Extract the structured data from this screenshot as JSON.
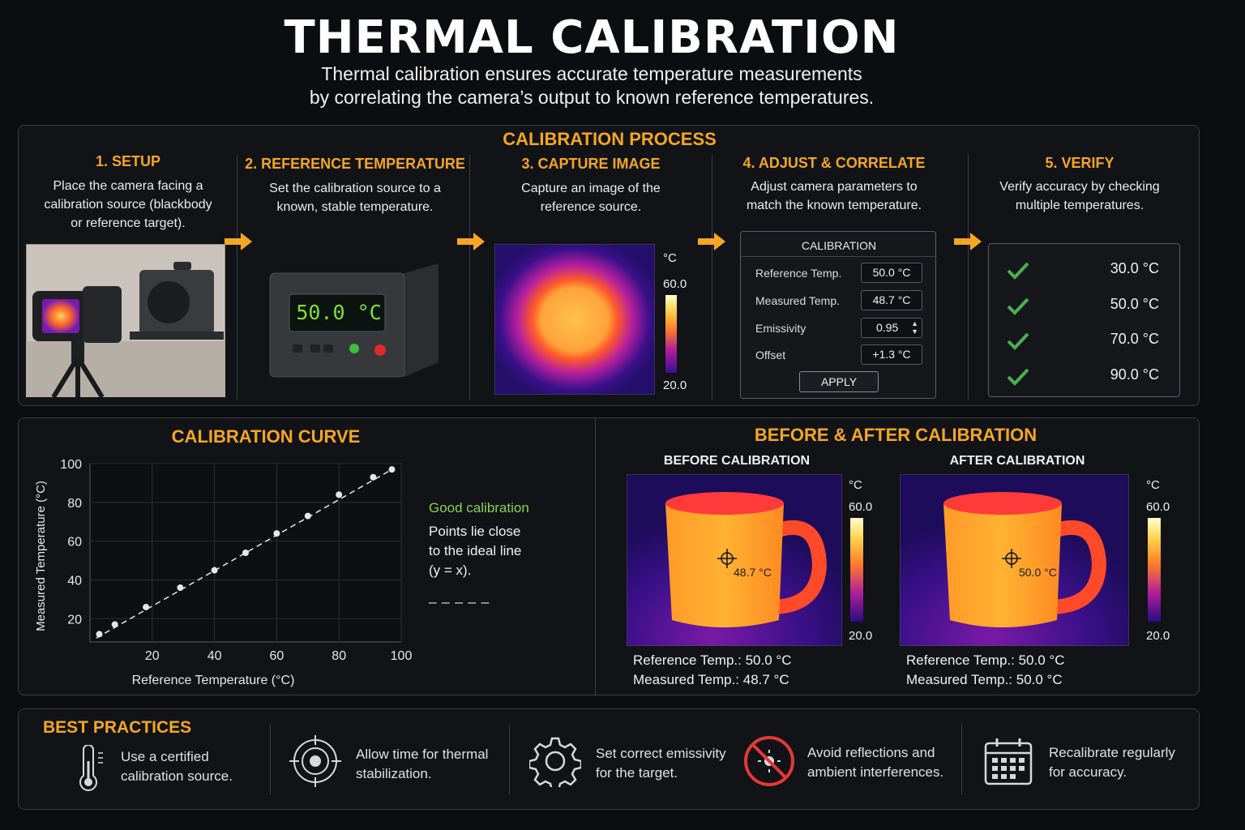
{
  "title": "THERMAL CALIBRATION",
  "subtitle_line1": "Thermal calibration ensures accurate temperature measurements",
  "subtitle_line2": "by correlating the camera’s output to known reference temperatures.",
  "process": {
    "title": "CALIBRATION PROCESS",
    "steps": [
      {
        "title": "1. SETUP",
        "desc": [
          "Place the camera facing a",
          "calibration source (blackbody",
          "or reference target)."
        ]
      },
      {
        "title": "2. REFERENCE TEMPERATURE",
        "desc": [
          "Set the calibration source to a",
          "known, stable temperature."
        ]
      },
      {
        "title": "3. CAPTURE IMAGE",
        "desc": [
          "Capture an image of the",
          "reference source."
        ]
      },
      {
        "title": "4. ADJUST & CORRELATE",
        "desc": [
          "Adjust camera parameters to",
          "match the known temperature."
        ]
      },
      {
        "title": "5. VERIFY",
        "desc": [
          "Verify accuracy by checking",
          "multiple temperatures."
        ]
      }
    ],
    "source_display": "50.0 °C",
    "capture_scale": {
      "unit": "°C",
      "max": "60.0",
      "min": "20.0"
    },
    "calibration_panel": {
      "header": "CALIBRATION",
      "rows": [
        {
          "label": "Reference Temp.",
          "value": "50.0 °C"
        },
        {
          "label": "Measured Temp.",
          "value": "48.7 °C"
        },
        {
          "label": "Emissivity",
          "value": "0.95"
        },
        {
          "label": "Offset",
          "value": "+1.3 °C"
        }
      ],
      "apply_label": "APPLY"
    },
    "verify_values": [
      "30.0 °C",
      "50.0 °C",
      "70.0 °C",
      "90.0 °C"
    ]
  },
  "curve": {
    "title": "CALIBRATION CURVE",
    "note_title": "Good calibration",
    "note_lines": [
      "Points lie close",
      "to the ideal line",
      "(y = x)."
    ],
    "note_dash": "_ _ _ _ _"
  },
  "chart_data": {
    "type": "scatter",
    "xlabel": "Reference Temperature (°C)",
    "ylabel": "Measured Temperature (°C)",
    "xlim": [
      0,
      100
    ],
    "ylim": [
      8,
      100
    ],
    "x_ticks": [
      "20",
      "40",
      "60",
      "80",
      "100"
    ],
    "y_ticks": [
      "20",
      "40",
      "60",
      "80",
      "100"
    ],
    "grid": true,
    "series": [
      {
        "x": [
          3,
          8,
          18,
          29,
          40,
          50,
          60,
          70,
          80,
          91,
          97
        ],
        "y": [
          12,
          17,
          26,
          36,
          45,
          54,
          64,
          73,
          84,
          93,
          97
        ]
      }
    ],
    "ideal_line": {
      "style": "dashed",
      "from": [
        2,
        10
      ],
      "to": [
        97,
        97
      ]
    }
  },
  "before_after": {
    "title": "BEFORE & AFTER CALIBRATION",
    "before": {
      "label": "BEFORE CALIBRATION",
      "spot_value": "48.7 °C",
      "scale_unit": "°C",
      "scale_max": "60.0",
      "scale_min": "20.0",
      "ref_line": "Reference Temp.: 50.0 °C",
      "meas_line": "Measured Temp.: 48.7 °C"
    },
    "after": {
      "label": "AFTER CALIBRATION",
      "spot_value": "50.0 °C",
      "scale_unit": "°C",
      "scale_max": "60.0",
      "scale_min": "20.0",
      "ref_line": "Reference Temp.: 50.0 °C",
      "meas_line": "Measured Temp.: 50.0 °C"
    }
  },
  "best_practices": {
    "title": "BEST PRACTICES",
    "items": [
      {
        "icon": "thermometer-icon",
        "lines": [
          "Use a certified",
          "calibration source."
        ]
      },
      {
        "icon": "target-icon",
        "lines": [
          "Allow time for thermal",
          "stabilization."
        ]
      },
      {
        "icon": "gear-icon",
        "lines": [
          "Set correct emissivity",
          "for the target."
        ]
      },
      {
        "icon": "no-reflection-icon",
        "lines": [
          "Avoid reflections and",
          "ambient interferences."
        ]
      },
      {
        "icon": "calendar-icon",
        "lines": [
          "Recalibrate regularly",
          "for accuracy."
        ]
      }
    ]
  },
  "colors": {
    "accent": "#f5a623",
    "good": "#8fd14f",
    "check": "#4caf50",
    "warn": "#e53935"
  }
}
